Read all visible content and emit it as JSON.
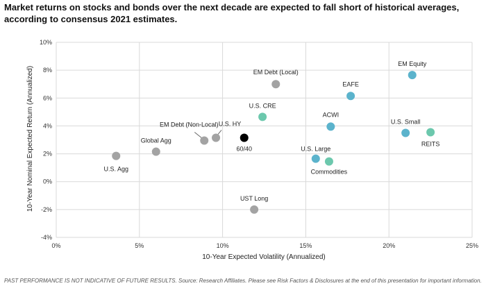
{
  "title": "Market returns on stocks and bonds over the next decade are expected to fall short of historical averages, according to consensus 2021 estimates.",
  "footnote": "PAST PERFORMANCE IS NOT INDICATIVE OF FUTURE RESULTS. Source: Research Affiliates. Please see Risk Factors & Disclosures at the end of this presentation for important information.",
  "colors": {
    "gray": "#a3a3a3",
    "blue": "#5bb3cc",
    "green": "#6cc8ad",
    "black": "#000000",
    "grid": "#d9d9d9"
  },
  "chart_data": {
    "type": "scatter",
    "xlabel": "10-Year Expected Volatility (Annualized)",
    "ylabel": "10-Year Nominal Expected Return (Annualized)",
    "xlim": [
      0,
      25
    ],
    "ylim": [
      -4,
      10
    ],
    "x_ticks": [
      "0%",
      "5%",
      "10%",
      "15%",
      "20%",
      "25%"
    ],
    "y_ticks": [
      "-4%",
      "-2%",
      "0%",
      "2%",
      "4%",
      "6%",
      "8%",
      "10%"
    ],
    "grid": true,
    "points": [
      {
        "label": "U.S. Agg",
        "x": 3.6,
        "y": 1.85,
        "color": "gray"
      },
      {
        "label": "Global Agg",
        "x": 6.0,
        "y": 2.15,
        "color": "gray"
      },
      {
        "label": "EM Debt (Non-Local)",
        "x": 8.9,
        "y": 2.95,
        "color": "gray"
      },
      {
        "label": "U.S. HY",
        "x": 9.6,
        "y": 3.15,
        "color": "gray"
      },
      {
        "label": "60/40",
        "x": 11.3,
        "y": 3.15,
        "color": "black"
      },
      {
        "label": "UST Long",
        "x": 11.9,
        "y": -2.0,
        "color": "gray"
      },
      {
        "label": "U.S. CRE",
        "x": 12.4,
        "y": 4.65,
        "color": "green"
      },
      {
        "label": "EM Debt (Local)",
        "x": 13.2,
        "y": 7.0,
        "color": "gray"
      },
      {
        "label": "U.S. Large",
        "x": 15.6,
        "y": 1.65,
        "color": "blue"
      },
      {
        "label": "Commodities",
        "x": 16.4,
        "y": 1.45,
        "color": "green"
      },
      {
        "label": "ACWI",
        "x": 16.5,
        "y": 3.95,
        "color": "blue"
      },
      {
        "label": "EAFE",
        "x": 17.7,
        "y": 6.15,
        "color": "blue"
      },
      {
        "label": "U.S. Small",
        "x": 21.0,
        "y": 3.5,
        "color": "blue"
      },
      {
        "label": "EM Equity",
        "x": 21.4,
        "y": 7.65,
        "color": "blue"
      },
      {
        "label": "REITS",
        "x": 22.5,
        "y": 3.55,
        "color": "green"
      }
    ]
  }
}
